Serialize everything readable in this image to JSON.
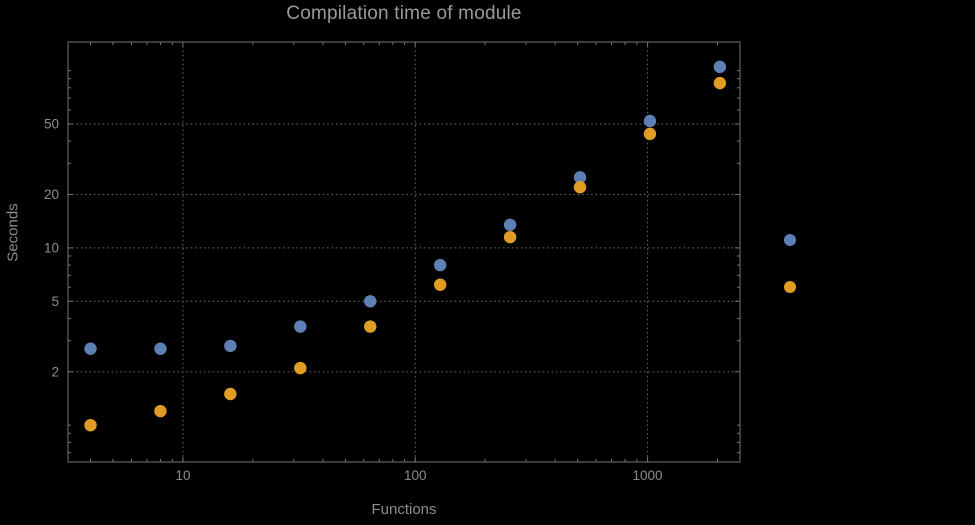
{
  "page": {
    "background": "#000000"
  },
  "chart_data": {
    "type": "scatter",
    "title": "Compilation time of module",
    "xlabel": "Functions",
    "ylabel": "Seconds",
    "x_scale": "log",
    "y_scale": "log",
    "xlim": [
      3.2,
      2500
    ],
    "ylim": [
      0.62,
      145
    ],
    "x_ticks": [
      10,
      100,
      1000
    ],
    "x_tick_labels": [
      "10",
      "100",
      "1000"
    ],
    "y_ticks": [
      2,
      5,
      10,
      20,
      50
    ],
    "y_tick_labels": [
      "2",
      "5",
      "10",
      "20",
      "50"
    ],
    "grid": true,
    "x": [
      4,
      8,
      16,
      32,
      64,
      128,
      256,
      512,
      1024,
      2048
    ],
    "series": [
      {
        "color": "#5e81b5",
        "values": [
          2.7,
          2.7,
          2.8,
          3.6,
          5.0,
          8.0,
          13.5,
          25,
          52,
          105
        ]
      },
      {
        "color": "#e19c24",
        "values": [
          1.0,
          1.2,
          1.5,
          2.1,
          3.6,
          6.2,
          11.5,
          22,
          44,
          85
        ]
      }
    ],
    "legend": {
      "position": "right-outside",
      "entries": [
        {
          "color": "#5e81b5",
          "label": ""
        },
        {
          "color": "#e19c24",
          "label": ""
        }
      ]
    }
  },
  "styles": {
    "frame_color": "#747474",
    "grid_color": "#5c5c5c",
    "tick_color": "#747474",
    "tick_label_color": "#8c8c8c",
    "title_color": "#9a9a9a",
    "axis_label_color": "#8c8c8c",
    "point_radius": 6.2
  }
}
